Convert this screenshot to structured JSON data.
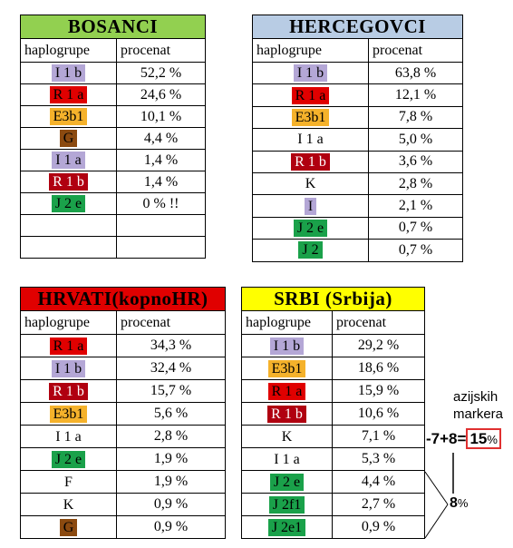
{
  "colors": {
    "bosanci_header": "#92d050",
    "hercegovci_header": "#b8cce4",
    "hrvati_header": "#e00000",
    "srbi_header": "#ffff00",
    "accent_box": "#e03030"
  },
  "header_labels": {
    "haplogroups": "haplogrupe",
    "percent": "procenat"
  },
  "tables": {
    "bosanci": {
      "title": "BOSANCI",
      "rows": [
        {
          "hg": "I 1 b",
          "pct": "52,2 %",
          "color": "lav"
        },
        {
          "hg": "R 1 a",
          "pct": "24,6 %",
          "color": "red"
        },
        {
          "hg": "E3b1",
          "pct": "10,1 %",
          "color": "gold"
        },
        {
          "hg": "G",
          "pct": "4,4 %",
          "color": "brown"
        },
        {
          "hg": "I  1 a",
          "pct": "1,4 %",
          "color": "lav"
        },
        {
          "hg": "R 1 b",
          "pct": "1,4 %",
          "color": "dkred"
        },
        {
          "hg": "J 2 e",
          "pct": "0 %  !!",
          "color": "green"
        },
        {
          "hg": "",
          "pct": "",
          "color": "none"
        },
        {
          "hg": "",
          "pct": "",
          "color": "none"
        }
      ]
    },
    "hercegovci": {
      "title": "HERCEGOVCI",
      "rows": [
        {
          "hg": "I 1 b",
          "pct": "63,8 %",
          "color": "lav"
        },
        {
          "hg": "R 1 a",
          "pct": "12,1 %",
          "color": "red"
        },
        {
          "hg": "E3b1",
          "pct": "7,8 %",
          "color": "gold"
        },
        {
          "hg": "I  1 a",
          "pct": "5,0 %",
          "color": "none"
        },
        {
          "hg": "R 1 b",
          "pct": "3,6 %",
          "color": "dkred"
        },
        {
          "hg": "K",
          "pct": "2,8 %",
          "color": "none"
        },
        {
          "hg": "I",
          "pct": "2,1 %",
          "color": "lav"
        },
        {
          "hg": "J 2 e",
          "pct": "0,7 %",
          "color": "green"
        },
        {
          "hg": "J 2",
          "pct": "0,7 %",
          "color": "green"
        }
      ]
    },
    "hrvati": {
      "title": "HRVATI(kopnoHR)",
      "rows": [
        {
          "hg": "R 1 a",
          "pct": "34,3 %",
          "color": "red"
        },
        {
          "hg": "I 1 b",
          "pct": "32,4 %",
          "color": "lav"
        },
        {
          "hg": "R 1 b",
          "pct": "15,7 %",
          "color": "dkred"
        },
        {
          "hg": "E3b1",
          "pct": "5,6 %",
          "color": "gold"
        },
        {
          "hg": "I  1 a",
          "pct": "2,8 %",
          "color": "none"
        },
        {
          "hg": "J 2 e",
          "pct": "1,9 %",
          "color": "green"
        },
        {
          "hg": "F",
          "pct": "1,9 %",
          "color": "none"
        },
        {
          "hg": "K",
          "pct": "0,9 %",
          "color": "none"
        },
        {
          "hg": "G",
          "pct": "0,9 %",
          "color": "brown"
        }
      ]
    },
    "srbi": {
      "title": "SRBI   (Srbija)",
      "rows": [
        {
          "hg": "I 1 b",
          "pct": "29,2 %",
          "color": "lav"
        },
        {
          "hg": "E3b1",
          "pct": "18,6 %",
          "color": "gold"
        },
        {
          "hg": "R 1 a",
          "pct": "15,9 %",
          "color": "red"
        },
        {
          "hg": "R 1 b",
          "pct": "10,6 %",
          "color": "dkred"
        },
        {
          "hg": "K",
          "pct": "7,1 %",
          "color": "none"
        },
        {
          "hg": "I  1 a",
          "pct": "5,3 %",
          "color": "none"
        },
        {
          "hg": "J 2 e",
          "pct": "4,4 %",
          "color": "green"
        },
        {
          "hg": "J 2f1",
          "pct": "2,7 %",
          "color": "green"
        },
        {
          "hg": "J 2e1",
          "pct": "0,9 %",
          "color": "green"
        }
      ]
    }
  },
  "annotation": {
    "label_line1": "azijskih",
    "label_line2": "markera",
    "sum_prefix": "-7+8=",
    "sum_value": "15",
    "sum_unit": "%",
    "bracket_value": "8",
    "bracket_unit": "%"
  }
}
